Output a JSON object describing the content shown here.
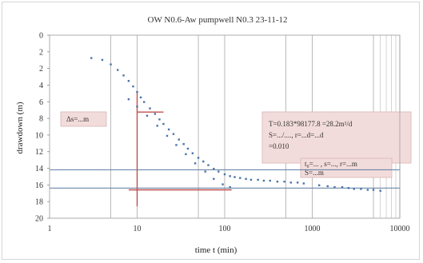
{
  "chart_data": {
    "type": "scatter",
    "title": "OW N0.6-Aw pumpwell N0.3 23-11-12",
    "xlabel": "time t (min)",
    "ylabel": "drawdown (m)",
    "x_scale": "log",
    "xlim": [
      1,
      10000
    ],
    "ylim": [
      0,
      20
    ],
    "y_inverted": true,
    "x_ticks": [
      "1",
      "10",
      "100",
      "1000",
      "10000"
    ],
    "y_ticks": [
      "0",
      "2",
      "2",
      "4",
      "6",
      "8",
      "10",
      "12",
      "14",
      "16",
      "18",
      "20"
    ],
    "series": [
      {
        "values": [
          {
            "x": 3,
            "y": 2.5
          },
          {
            "x": 4,
            "y": 2.7
          },
          {
            "x": 5,
            "y": 3.2
          },
          {
            "x": 6,
            "y": 3.8
          },
          {
            "x": 7,
            "y": 4.4
          },
          {
            "x": 8,
            "y": 5.0
          },
          {
            "x": 9,
            "y": 5.6
          },
          {
            "x": 10,
            "y": 6.2
          },
          {
            "x": 11,
            "y": 6.8
          },
          {
            "x": 12,
            "y": 7.3
          },
          {
            "x": 14,
            "y": 8.0
          },
          {
            "x": 16,
            "y": 8.6
          },
          {
            "x": 18,
            "y": 9.2
          },
          {
            "x": 20,
            "y": 9.7
          },
          {
            "x": 23,
            "y": 10.3
          },
          {
            "x": 26,
            "y": 10.8
          },
          {
            "x": 30,
            "y": 11.4
          },
          {
            "x": 34,
            "y": 11.9
          },
          {
            "x": 38,
            "y": 12.4
          },
          {
            "x": 43,
            "y": 12.9
          },
          {
            "x": 50,
            "y": 13.4
          },
          {
            "x": 57,
            "y": 13.8
          },
          {
            "x": 65,
            "y": 14.2
          },
          {
            "x": 75,
            "y": 14.6
          },
          {
            "x": 85,
            "y": 14.9
          },
          {
            "x": 100,
            "y": 15.2
          },
          {
            "x": 115,
            "y": 15.4
          },
          {
            "x": 130,
            "y": 15.5
          },
          {
            "x": 150,
            "y": 15.6
          },
          {
            "x": 175,
            "y": 15.7
          },
          {
            "x": 200,
            "y": 15.8
          },
          {
            "x": 240,
            "y": 15.8
          },
          {
            "x": 280,
            "y": 15.9
          },
          {
            "x": 330,
            "y": 15.9
          },
          {
            "x": 400,
            "y": 16.0
          },
          {
            "x": 480,
            "y": 16.0
          },
          {
            "x": 570,
            "y": 16.1
          },
          {
            "x": 680,
            "y": 16.1
          },
          {
            "x": 800,
            "y": 16.2
          },
          {
            "x": 1200,
            "y": 16.4
          },
          {
            "x": 1500,
            "y": 16.5
          },
          {
            "x": 1800,
            "y": 16.6
          },
          {
            "x": 2200,
            "y": 16.6
          },
          {
            "x": 2600,
            "y": 16.7
          },
          {
            "x": 3000,
            "y": 16.8
          },
          {
            "x": 3600,
            "y": 16.8
          },
          {
            "x": 4300,
            "y": 16.9
          },
          {
            "x": 5000,
            "y": 16.9
          },
          {
            "x": 6000,
            "y": 17.0
          }
        ]
      },
      {
        "values": [
          {
            "x": 8,
            "y": 7.0
          },
          {
            "x": 10,
            "y": 7.8
          },
          {
            "x": 13,
            "y": 8.8
          },
          {
            "x": 17,
            "y": 9.9
          },
          {
            "x": 22,
            "y": 11.0
          },
          {
            "x": 28,
            "y": 12.0
          },
          {
            "x": 36,
            "y": 13.0
          },
          {
            "x": 46,
            "y": 14.0
          },
          {
            "x": 60,
            "y": 14.9
          },
          {
            "x": 75,
            "y": 15.7
          },
          {
            "x": 95,
            "y": 16.3
          },
          {
            "x": 115,
            "y": 16.6
          }
        ]
      }
    ],
    "reference_lines": [
      {
        "orientation": "horizontal",
        "y": 14.7,
        "x_from": 1,
        "x_to": 10000
      },
      {
        "orientation": "horizontal",
        "y": 16.7,
        "x_from": 1,
        "x_to": 10000
      },
      {
        "orientation": "horizontal",
        "y": 16.9,
        "x_from": 8,
        "x_to": 120
      },
      {
        "orientation": "vertical",
        "x": 10,
        "y_from": 6.2,
        "y_to": 18.7
      },
      {
        "orientation": "horizontal",
        "y": 8.4,
        "x_from": 10,
        "x_to": 20
      }
    ],
    "annotations": {
      "left_box": "Δs=...m",
      "right_box": [
        "T=0.183*98177.8 =28.2m²/d",
        "S=.../...., r=...d=...d",
        "=0.010"
      ],
      "small_box": [
        "t₀=... , s=..., r=...m",
        "S=...m"
      ]
    },
    "colors": {
      "series_1": "#4a74a8",
      "series_2": "#4a74a8",
      "reference": "#c0504d",
      "reference_light": "#5a78a0",
      "box_fill": "#f2dcdb"
    }
  }
}
